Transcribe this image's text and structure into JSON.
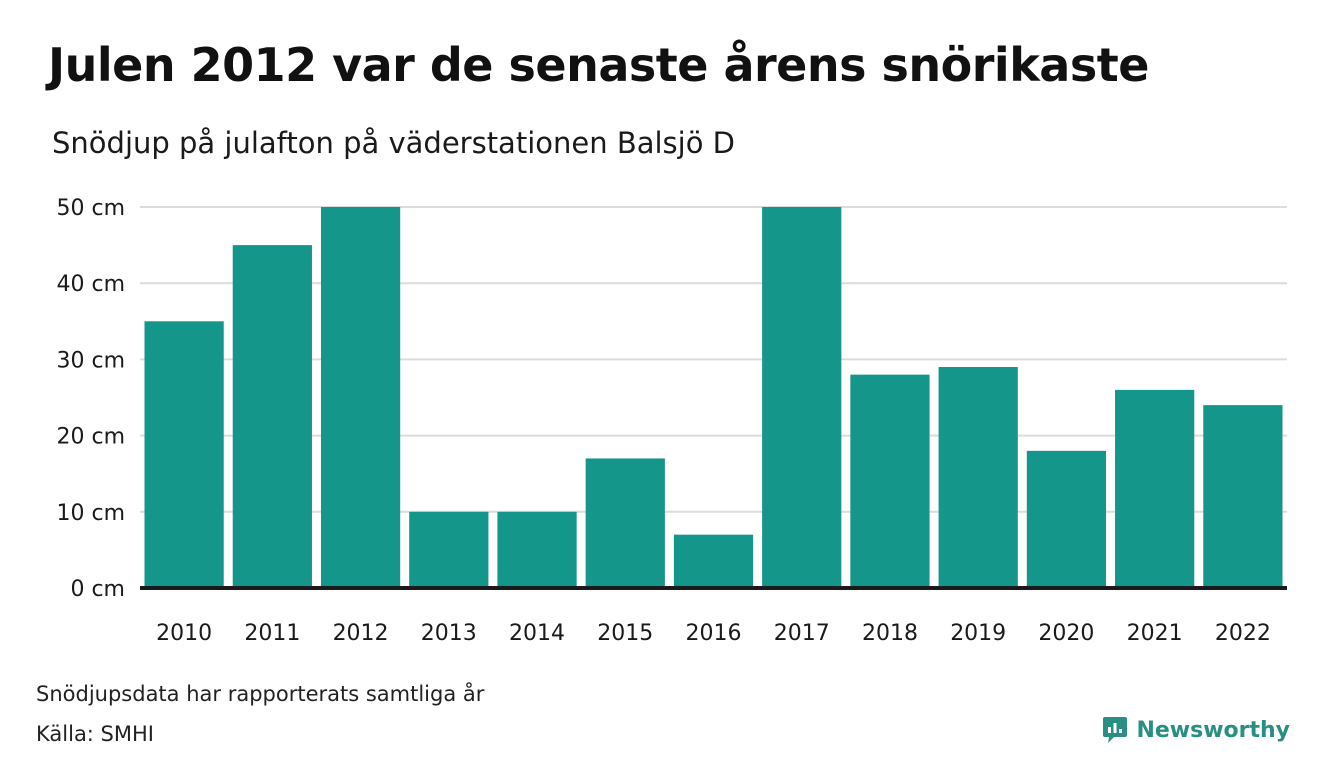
{
  "header": {
    "title": "Julen 2012 var de senaste årens snörikaste",
    "subtitle": "Snödjup på julafton på väderstationen Balsjö D"
  },
  "footer": {
    "note": "Snödjupsdata har rapporterats samtliga år",
    "source": "Källa: SMHI",
    "brand": "Newsworthy",
    "brand_icon": "newsworthy-logo-icon"
  },
  "colors": {
    "bar": "#14968a",
    "grid": "#dcdcdc",
    "axis": "#1a1a1a",
    "brand": "#2a8f83"
  },
  "chart_data": {
    "type": "bar",
    "categories": [
      "2010",
      "2011",
      "2012",
      "2013",
      "2014",
      "2015",
      "2016",
      "2017",
      "2018",
      "2019",
      "2020",
      "2021",
      "2022"
    ],
    "values": [
      35,
      45,
      50,
      10,
      10,
      17,
      7,
      50,
      28,
      29,
      18,
      26,
      24
    ],
    "yticks": [
      0,
      10,
      20,
      30,
      40,
      50
    ],
    "ytick_labels": [
      "0 cm",
      "10 cm",
      "20 cm",
      "30 cm",
      "40 cm",
      "50 cm"
    ],
    "ylim": [
      0,
      50
    ],
    "grid": true,
    "legend": "none"
  }
}
